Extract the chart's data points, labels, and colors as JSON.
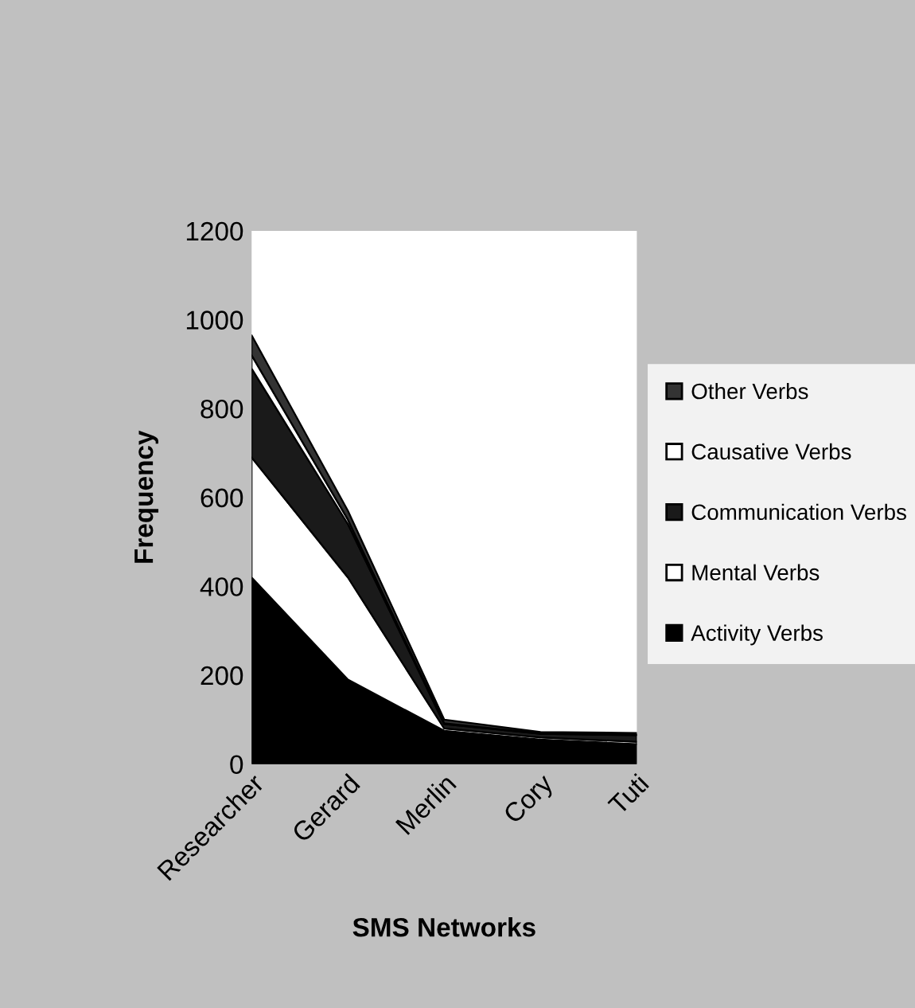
{
  "chart_data": {
    "type": "area",
    "stacked": true,
    "xlabel": "SMS Networks",
    "ylabel": "Frequency",
    "categories": [
      "Researcher",
      "Gerard",
      "Merlin",
      "Cory",
      "Tuti"
    ],
    "series": [
      {
        "name": "Activity Verbs",
        "color": "#000000",
        "values": [
          420,
          190,
          75,
          55,
          45
        ]
      },
      {
        "name": "Mental Verbs",
        "color": "#ffffff",
        "values": [
          270,
          230,
          5,
          5,
          5
        ]
      },
      {
        "name": "Communication Verbs",
        "color": "#1a1a1a",
        "values": [
          200,
          120,
          10,
          8,
          15
        ]
      },
      {
        "name": "Causative Verbs",
        "color": "#ffffff",
        "values": [
          30,
          10,
          2,
          1,
          1
        ]
      },
      {
        "name": "Other Verbs",
        "color": "#333333",
        "values": [
          45,
          20,
          8,
          3,
          4
        ]
      }
    ],
    "ylim": [
      0,
      1200
    ],
    "yticks": [
      0,
      200,
      400,
      600,
      800,
      1000,
      1200
    ],
    "grid": false,
    "legend": "right"
  }
}
